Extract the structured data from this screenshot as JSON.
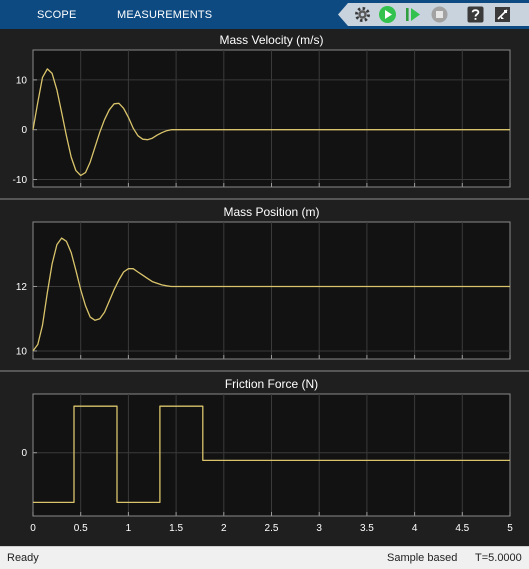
{
  "toolstrip": {
    "tabs": [
      {
        "label": "SCOPE"
      },
      {
        "label": "MEASUREMENTS"
      }
    ],
    "icons": [
      "settings-gear-icon",
      "run-icon",
      "step-forward-icon",
      "stop-icon",
      "help-icon",
      "expand-icon"
    ],
    "colors": {
      "background": "#0d4a82",
      "run": "#33c24d",
      "stop": "#8a8a8a"
    }
  },
  "status": {
    "text": "Ready",
    "mode": "Sample based",
    "time": "T=5.0000"
  },
  "chart_data": [
    {
      "type": "line",
      "title": "Mass Velocity (m/s)",
      "xlim": [
        0,
        5
      ],
      "ylim": [
        -11.5,
        16
      ],
      "yticks": [
        10,
        0,
        -10
      ],
      "xticks": [
        0,
        0.5,
        1,
        1.5,
        2,
        2.5,
        3,
        3.5,
        4,
        4.5,
        5
      ],
      "show_xtick_labels": false,
      "grid": true,
      "line_color": "#d9c46b",
      "series": [
        {
          "x": [
            0,
            0.05,
            0.1,
            0.15,
            0.2,
            0.25,
            0.3,
            0.35,
            0.4,
            0.45,
            0.5,
            0.55,
            0.6,
            0.65,
            0.7,
            0.75,
            0.8,
            0.85,
            0.9,
            0.95,
            1.0,
            1.05,
            1.1,
            1.15,
            1.2,
            1.25,
            1.3,
            1.35,
            1.4,
            1.45,
            1.5,
            1.55,
            1.6,
            1.65,
            1.7,
            1.75,
            1.8,
            2.0,
            3.0,
            4.0,
            5.0
          ],
          "y": [
            0,
            5.5,
            10.5,
            12.2,
            11.3,
            8.0,
            3.5,
            -1.2,
            -5.5,
            -8.2,
            -9.2,
            -8.6,
            -6.5,
            -3.5,
            -0.5,
            2.0,
            4.0,
            5.2,
            5.3,
            4.3,
            2.5,
            0.3,
            -1.2,
            -1.9,
            -2.0,
            -1.7,
            -1.1,
            -0.6,
            -0.2,
            0,
            0,
            0,
            0,
            0,
            0,
            0,
            0,
            0,
            0,
            0,
            0
          ]
        }
      ]
    },
    {
      "type": "line",
      "title": "Mass Position (m)",
      "xlim": [
        0,
        5
      ],
      "ylim": [
        9.75,
        14
      ],
      "yticks": [
        12,
        10
      ],
      "xticks": [
        0,
        0.5,
        1,
        1.5,
        2,
        2.5,
        3,
        3.5,
        4,
        4.5,
        5
      ],
      "show_xtick_labels": false,
      "grid": true,
      "line_color": "#d9c46b",
      "series": [
        {
          "x": [
            0,
            0.05,
            0.1,
            0.15,
            0.2,
            0.25,
            0.3,
            0.35,
            0.4,
            0.45,
            0.5,
            0.55,
            0.6,
            0.65,
            0.7,
            0.75,
            0.8,
            0.85,
            0.9,
            0.95,
            1.0,
            1.05,
            1.1,
            1.15,
            1.2,
            1.25,
            1.3,
            1.35,
            1.4,
            1.45,
            1.5,
            1.55,
            1.6,
            1.65,
            1.7,
            1.75,
            1.8,
            2.0,
            3.0,
            4.0,
            5.0
          ],
          "y": [
            10.0,
            10.2,
            10.8,
            11.8,
            12.7,
            13.3,
            13.5,
            13.4,
            13.05,
            12.5,
            11.9,
            11.4,
            11.05,
            10.95,
            11.0,
            11.2,
            11.55,
            11.9,
            12.2,
            12.45,
            12.55,
            12.55,
            12.45,
            12.35,
            12.25,
            12.15,
            12.1,
            12.05,
            12.02,
            12.0,
            12.0,
            12.0,
            12.0,
            12.0,
            12.0,
            12.0,
            12.0,
            12.0,
            12.0,
            12.0,
            12.0
          ]
        }
      ]
    },
    {
      "type": "line",
      "title": "Friction Force (N)",
      "xlim": [
        0,
        5
      ],
      "ylim": [
        -14,
        13
      ],
      "yticks": [
        0
      ],
      "xticks": [
        0,
        0.5,
        1,
        1.5,
        2,
        2.5,
        3,
        3.5,
        4,
        4.5,
        5
      ],
      "show_xtick_labels": true,
      "grid": true,
      "line_color": "#d9c46b",
      "series": [
        {
          "x": [
            0,
            0.43,
            0.43,
            0.88,
            0.88,
            1.33,
            1.33,
            1.78,
            1.78,
            5.0
          ],
          "y": [
            -11,
            -11,
            10.3,
            10.3,
            -11,
            -11,
            10.3,
            10.3,
            -1.7,
            -1.7
          ]
        }
      ]
    }
  ]
}
